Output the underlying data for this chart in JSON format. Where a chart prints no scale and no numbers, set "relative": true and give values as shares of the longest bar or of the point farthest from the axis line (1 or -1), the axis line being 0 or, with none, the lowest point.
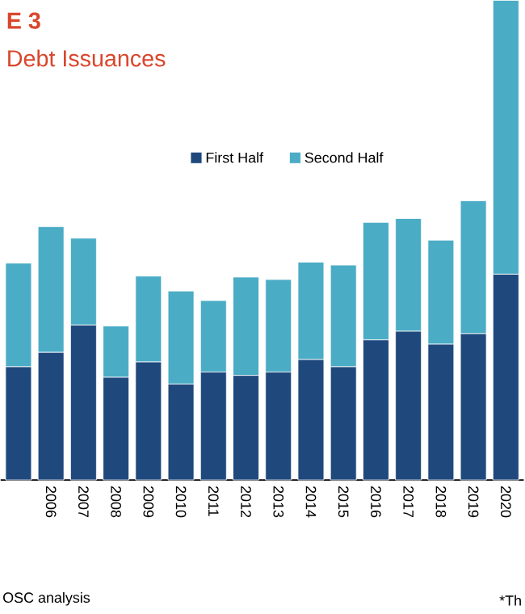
{
  "chart_data": {
    "type": "bar",
    "title": "E 3",
    "subtitle": "Debt Issuances",
    "relative": true,
    "stacked": true,
    "legend": "top",
    "categories": [
      null,
      "2006",
      "2007",
      "2008",
      "2009",
      "2010",
      "2011",
      "2012",
      "2013",
      "2014",
      "2015",
      "2016",
      "2017",
      "2018",
      "2019",
      "2020"
    ],
    "series": [
      {
        "name": "First Half",
        "color": "#1f497d",
        "values": [
          0.236,
          0.266,
          0.323,
          0.214,
          0.246,
          0.2,
          0.225,
          0.218,
          0.225,
          0.251,
          0.236,
          0.292,
          0.31,
          0.283,
          0.305,
          0.429
        ]
      },
      {
        "name": "Second Half",
        "color": "#4bacc6",
        "values": [
          0.216,
          0.262,
          0.181,
          0.107,
          0.179,
          0.194,
          0.149,
          0.205,
          0.193,
          0.203,
          0.212,
          0.245,
          0.235,
          0.217,
          0.277,
          0.571
        ]
      }
    ],
    "annotations": [
      "OSC analysis",
      "*Th"
    ]
  }
}
